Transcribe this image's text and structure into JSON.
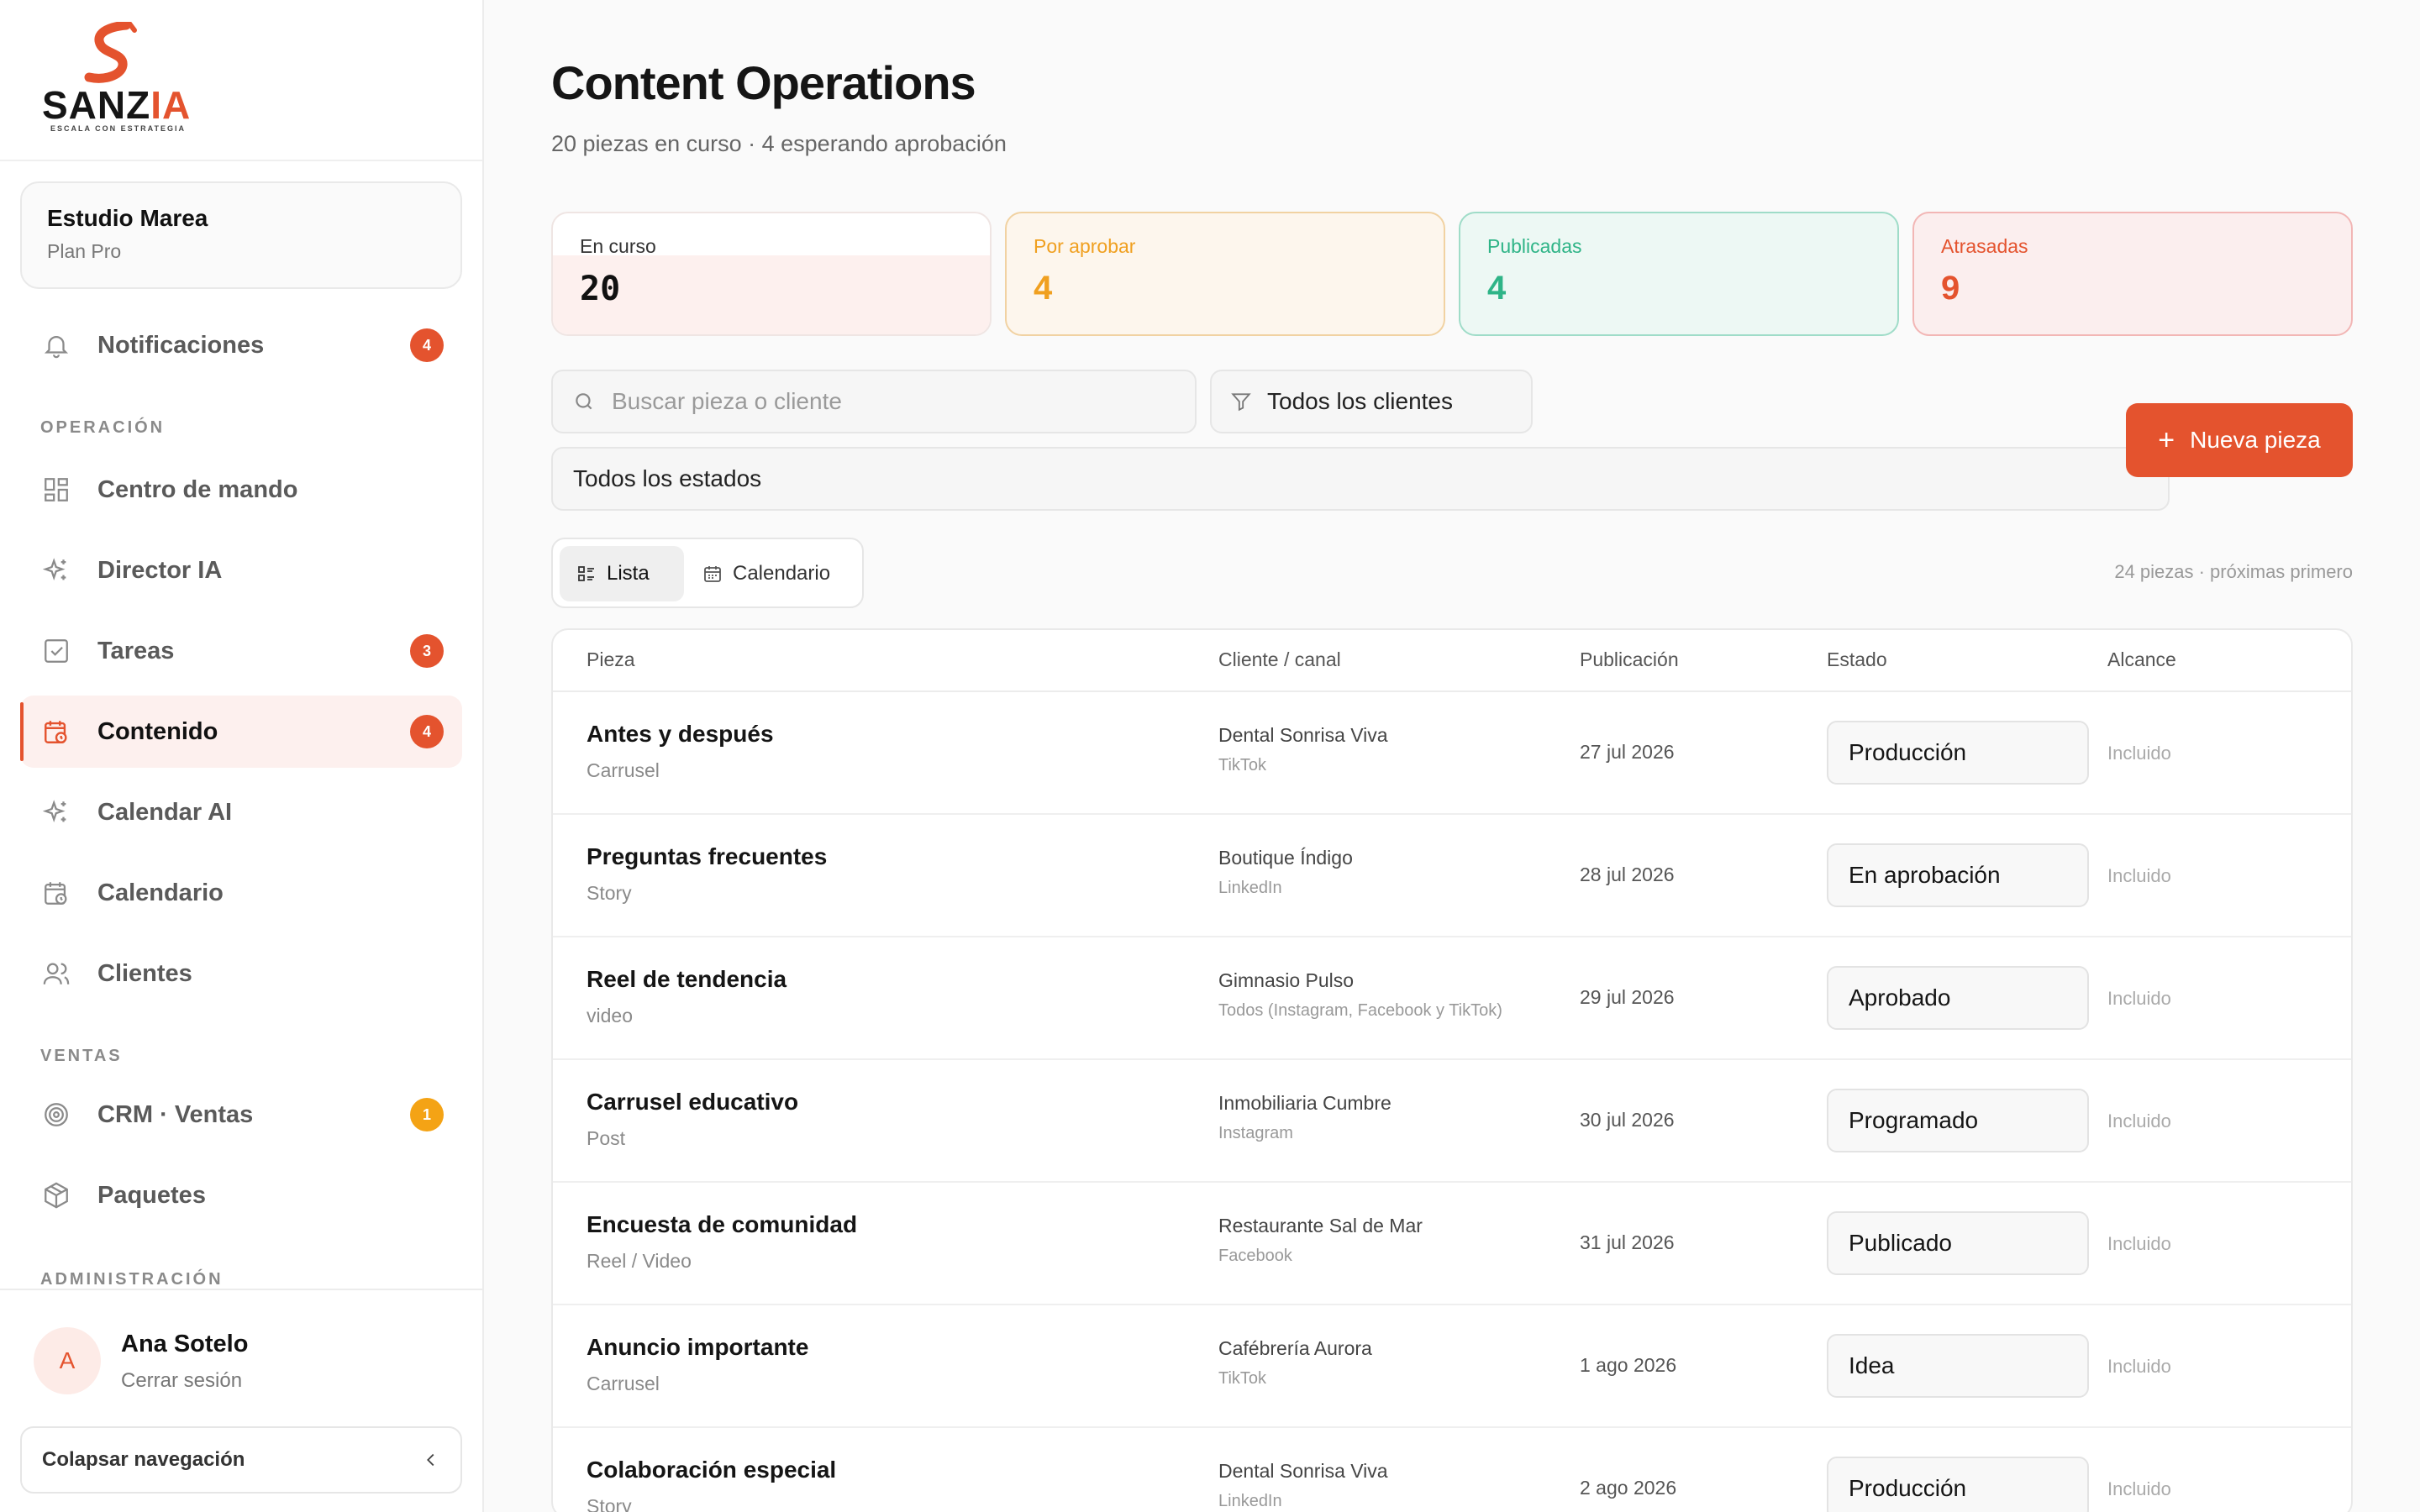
{
  "brand": {
    "name_part1": "SANZ",
    "name_part2": "IA",
    "tagline": "ESCALA CON ESTRATEGIA",
    "accent": "#e4532e"
  },
  "workspace": {
    "name": "Estudio Marea",
    "plan": "Plan Pro"
  },
  "nav": {
    "notifications": {
      "label": "Notificaciones",
      "badge": "4"
    },
    "section_operation": "OPERACIÓN",
    "command_center": {
      "label": "Centro de mando"
    },
    "director_ai": {
      "label": "Director IA"
    },
    "tasks": {
      "label": "Tareas",
      "badge": "3"
    },
    "content": {
      "label": "Contenido",
      "badge": "4"
    },
    "calendar_ai": {
      "label": "Calendar AI"
    },
    "calendar": {
      "label": "Calendario"
    },
    "clients": {
      "label": "Clientes"
    },
    "section_sales": "VENTAS",
    "crm": {
      "label": "CRM · Ventas",
      "badge": "1"
    },
    "packages": {
      "label": "Paquetes"
    },
    "section_admin": "ADMINISTRACIÓN"
  },
  "user": {
    "initial": "A",
    "name": "Ana Sotelo",
    "logout": "Cerrar sesión",
    "collapse": "Colapsar navegación"
  },
  "header": {
    "title": "Content Operations",
    "subtitle": "20 piezas en curso · 4 esperando aprobación"
  },
  "stats": [
    {
      "label": "En curso",
      "value": "20"
    },
    {
      "label": "Por aprobar",
      "value": "4"
    },
    {
      "label": "Publicadas",
      "value": "4"
    },
    {
      "label": "Atrasadas",
      "value": "9"
    }
  ],
  "filters": {
    "search_placeholder": "Buscar pieza o cliente",
    "client": "Todos los clientes",
    "status": "Todos los estados",
    "new_button": "Nueva pieza"
  },
  "view": {
    "list": "Lista",
    "calendar": "Calendario",
    "count_note": "24 piezas · próximas primero"
  },
  "table": {
    "headers": {
      "piece": "Pieza",
      "client": "Cliente / canal",
      "publication": "Publicación",
      "status": "Estado",
      "reach": "Alcance"
    },
    "rows": [
      {
        "title": "Antes y después",
        "type": "Carrusel",
        "client": "Dental Sonrisa Viva",
        "channel": "TikTok",
        "date": "27 jul 2026",
        "status": "Producción",
        "reach": "Incluido"
      },
      {
        "title": "Preguntas frecuentes",
        "type": "Story",
        "client": "Boutique Índigo",
        "channel": "LinkedIn",
        "date": "28 jul 2026",
        "status": "En aprobación",
        "reach": "Incluido"
      },
      {
        "title": "Reel de tendencia",
        "type": "video",
        "client": "Gimnasio Pulso",
        "channel": "Todos (Instagram, Facebook y TikTok)",
        "date": "29 jul 2026",
        "status": "Aprobado",
        "reach": "Incluido"
      },
      {
        "title": "Carrusel educativo",
        "type": "Post",
        "client": "Inmobiliaria Cumbre",
        "channel": "Instagram",
        "date": "30 jul 2026",
        "status": "Programado",
        "reach": "Incluido"
      },
      {
        "title": "Encuesta de comunidad",
        "type": "Reel / Video",
        "client": "Restaurante Sal de Mar",
        "channel": "Facebook",
        "date": "31 jul 2026",
        "status": "Publicado",
        "reach": "Incluido"
      },
      {
        "title": "Anuncio importante",
        "type": "Carrusel",
        "client": "Cafébrería Aurora",
        "channel": "TikTok",
        "date": "1 ago 2026",
        "status": "Idea",
        "reach": "Incluido"
      },
      {
        "title": "Colaboración especial",
        "type": "Story",
        "client": "Dental Sonrisa Viva",
        "channel": "LinkedIn",
        "date": "2 ago 2026",
        "status": "Producción",
        "reach": "Incluido"
      }
    ]
  }
}
